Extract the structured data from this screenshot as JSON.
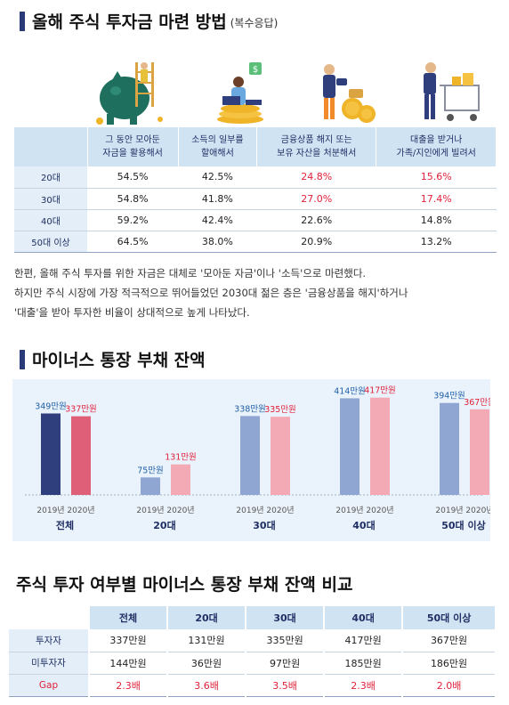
{
  "section1": {
    "title": "올해 주식 투자금 마련 방법",
    "subtitle": "(복수응답)",
    "columns": [
      "그 동안 모아둔\n자금을 활용해서",
      "소득의 일부를\n할애해서",
      "금융상품 해지 또는\n보유 자산을 처분해서",
      "대출을 받거나\n가족/지인에게 빌려서"
    ],
    "rows": [
      {
        "label": "20대",
        "values": [
          "54.5%",
          "42.5%",
          "24.8%",
          "15.6%"
        ],
        "red": [
          false,
          false,
          true,
          true
        ]
      },
      {
        "label": "30대",
        "values": [
          "54.8%",
          "41.8%",
          "27.0%",
          "17.4%"
        ],
        "red": [
          false,
          false,
          true,
          true
        ]
      },
      {
        "label": "40대",
        "values": [
          "59.2%",
          "42.4%",
          "22.6%",
          "14.8%"
        ],
        "red": [
          false,
          false,
          false,
          false
        ]
      },
      {
        "label": "50대 이상",
        "values": [
          "64.5%",
          "38.0%",
          "20.9%",
          "13.2%"
        ],
        "red": [
          false,
          false,
          false,
          false
        ]
      }
    ],
    "paragraph": [
      "한편, 올해 주식 투자를 위한 자금은 대체로 '모아둔 자금'이나 '소득'으로 마련했다.",
      "하지만 주식 시장에 가장 적극적으로 뛰어들었던 2030대 젊은 층은 '금융상품을 해지'하거나",
      "'대출'을 받아 투자한 비율이 상대적으로 높게 나타났다."
    ]
  },
  "section2": {
    "title": "마이너스 통장 부채 잔액"
  },
  "chart_data": {
    "type": "bar",
    "categories": [
      "전체",
      "20대",
      "30대",
      "40대",
      "50대 이상"
    ],
    "series": [
      {
        "name": "2019년",
        "values": [
          349,
          75,
          338,
          414,
          394
        ],
        "labels": [
          "349만원",
          "75만원",
          "338만원",
          "414만원",
          "394만원"
        ]
      },
      {
        "name": "2020년",
        "values": [
          337,
          131,
          335,
          417,
          367
        ],
        "labels": [
          "337만원",
          "131만원",
          "335만원",
          "417만원",
          "367만원"
        ]
      }
    ],
    "ylim": [
      0,
      450
    ],
    "colors": {
      "y2019_total": "#2f3f7e",
      "y2020_total": "#df5f78",
      "y2019": "#8fa6d3",
      "y2020": "#f3aab5",
      "label2019": "#1f5fa8",
      "label2020": "#e0213a"
    }
  },
  "section3": {
    "title": "주식 투자 여부별 마이너스 통장 부채 잔액 비교",
    "headers": [
      "",
      "전체",
      "20대",
      "30대",
      "40대",
      "50대 이상"
    ],
    "rows": [
      {
        "label": "투자자",
        "values": [
          "337만원",
          "131만원",
          "335만원",
          "417만원",
          "367만원"
        ],
        "gap": false
      },
      {
        "label": "미투자자",
        "values": [
          "144만원",
          "36만원",
          "97만원",
          "185만원",
          "186만원"
        ],
        "gap": false
      },
      {
        "label": "Gap",
        "values": [
          "2.3배",
          "3.6배",
          "3.5배",
          "2.3배",
          "2.0배"
        ],
        "gap": true
      }
    ]
  },
  "icons": [
    "piggy-bank-icon",
    "laptop-coins-icon",
    "coins-briefcase-icon",
    "shopping-cart-icon"
  ]
}
